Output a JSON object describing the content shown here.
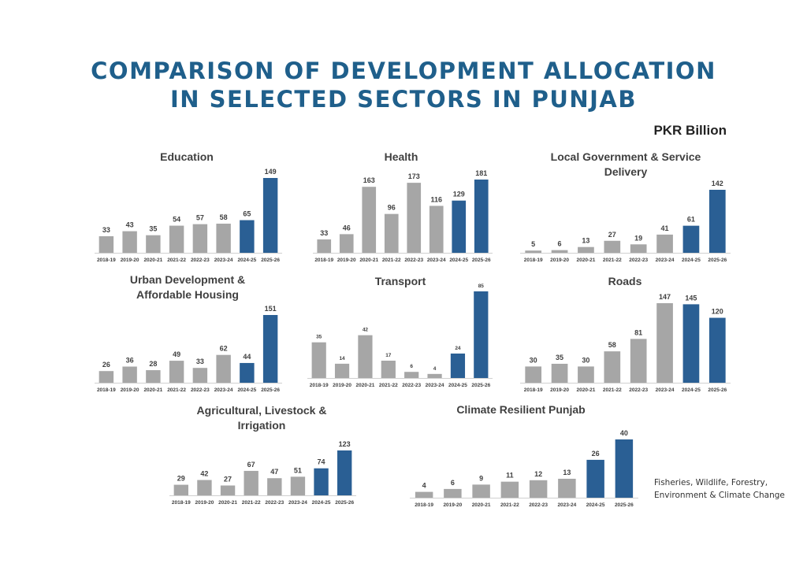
{
  "title_line1": "COMPARISON OF DEVELOPMENT ALLOCATION",
  "title_line2": "IN SELECTED SECTORS IN PUNJAB",
  "unit": "PKR Billion",
  "note": "Fisheries, Wildlife, Forestry,\nEnvironment & Climate Change",
  "colors": {
    "gray": "#a6a6a6",
    "blue": "#2a5f94",
    "title": "#1f5f8b"
  },
  "chart_data": [
    {
      "type": "bar",
      "title": "Education",
      "categories": [
        "2018-19",
        "2019-20",
        "2020-21",
        "2021-22",
        "2022-23",
        "2023-24",
        "2024-25",
        "2025-26"
      ],
      "values": [
        33,
        43,
        35,
        54,
        57,
        58,
        65,
        149
      ],
      "highlight_from": "2024-25"
    },
    {
      "type": "bar",
      "title": "Health",
      "categories": [
        "2018-19",
        "2019-20",
        "2020-21",
        "2021-22",
        "2022-23",
        "2023-24",
        "2024-25",
        "2025-26"
      ],
      "values": [
        33,
        46,
        163,
        96,
        173,
        116,
        129,
        181
      ],
      "highlight_from": "2024-25"
    },
    {
      "type": "bar",
      "title": "Local Government & Service Delivery",
      "categories": [
        "2018-19",
        "2019-20",
        "2020-21",
        "2021-22",
        "2022-23",
        "2023-24",
        "2024-25",
        "2025-26"
      ],
      "values": [
        5,
        6,
        13,
        27,
        19,
        41,
        61,
        142
      ],
      "highlight_from": "2024-25"
    },
    {
      "type": "bar",
      "title": "Urban Development & Affordable Housing",
      "categories": [
        "2018-19",
        "2019-20",
        "2020-21",
        "2021-22",
        "2022-23",
        "2023-24",
        "2024-25",
        "2025-26"
      ],
      "values": [
        26,
        36,
        28,
        49,
        33,
        62,
        44,
        151
      ],
      "highlight_from": "2024-25"
    },
    {
      "type": "bar",
      "title": "Transport",
      "categories": [
        "2018-19",
        "2019-20",
        "2020-21",
        "2021-22",
        "2022-23",
        "2023-24",
        "2024-25",
        "2025-26"
      ],
      "values": [
        35,
        14,
        42,
        17,
        6,
        4,
        24,
        85
      ],
      "highlight_from": "2024-25"
    },
    {
      "type": "bar",
      "title": "Roads",
      "categories": [
        "2018-19",
        "2019-20",
        "2020-21",
        "2021-22",
        "2022-23",
        "2023-24",
        "2024-25",
        "2025-26"
      ],
      "values": [
        30,
        35,
        30,
        58,
        81,
        147,
        145,
        120
      ],
      "highlight_from": "2024-25"
    },
    {
      "type": "bar",
      "title": "Agricultural, Livestock & Irrigation",
      "categories": [
        "2018-19",
        "2019-20",
        "2020-21",
        "2021-22",
        "2022-23",
        "2023-24",
        "2024-25",
        "2025-26"
      ],
      "values": [
        29,
        42,
        27,
        67,
        47,
        51,
        74,
        123
      ],
      "highlight_from": "2024-25"
    },
    {
      "type": "bar",
      "title": "Climate Resilient Punjab",
      "categories": [
        "2018-19",
        "2019-20",
        "2020-21",
        "2021-22",
        "2022-23",
        "2023-24",
        "2024-25",
        "2025-26"
      ],
      "values": [
        4,
        6,
        9,
        11,
        12,
        13,
        26,
        40
      ],
      "highlight_from": "2024-25"
    }
  ]
}
